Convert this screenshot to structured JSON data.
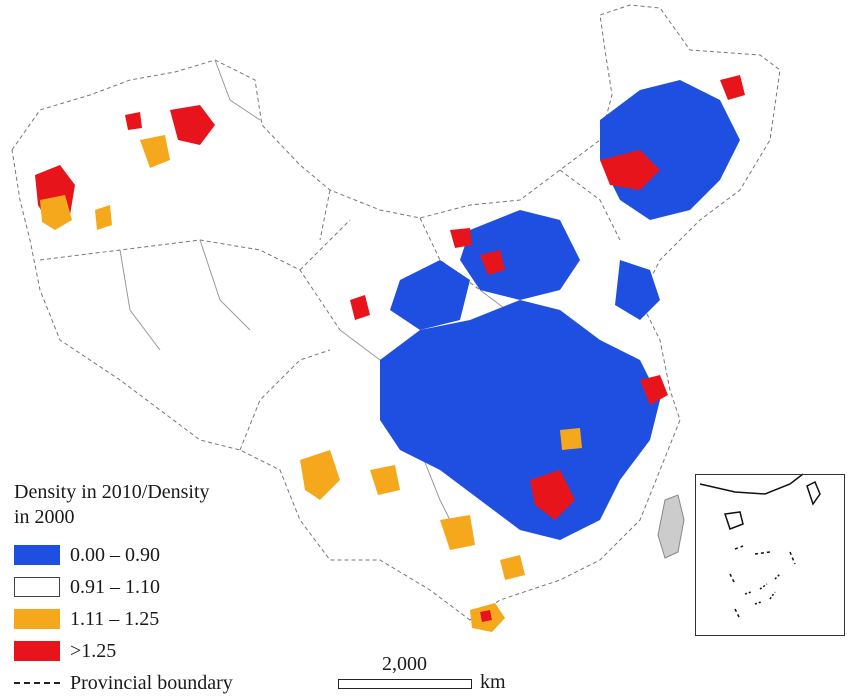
{
  "legend": {
    "title": "Density in 2010/Density in 2000",
    "items": [
      {
        "label": "0.00 – 0.90",
        "color": "#1f4fe0"
      },
      {
        "label": "0.91 – 1.10",
        "color": "#ffffff"
      },
      {
        "label": "1.11 – 1.25",
        "color": "#f5a81c"
      },
      {
        "label": ">1.25",
        "color": "#e8141c"
      }
    ],
    "boundary_label": "Provincial boundary"
  },
  "scale_bar": {
    "value": "2,000",
    "unit": "km"
  },
  "inset": {
    "icon": "south-china-sea-inset"
  }
}
